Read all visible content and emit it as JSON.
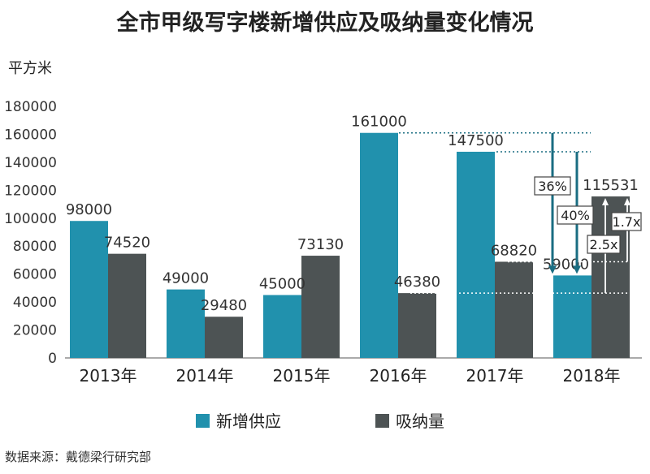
{
  "title": "全市甲级写字楼新增供应及吸纳量变化情况",
  "unit": "平方米",
  "source": "数据来源：戴德梁行研究部",
  "colors": {
    "supply": "#2191ad",
    "absorption": "#4d5354",
    "annotation": "#1a6d82"
  },
  "chart_data": {
    "type": "bar",
    "categories": [
      "2013年",
      "2014年",
      "2015年",
      "2016年",
      "2017年",
      "2018年"
    ],
    "series": [
      {
        "name": "新增供应",
        "values": [
          98000,
          49000,
          45000,
          161000,
          147500,
          59000
        ]
      },
      {
        "name": "吸纳量",
        "values": [
          74520,
          29480,
          73130,
          46380,
          68820,
          115531
        ]
      }
    ],
    "ylim": [
      0,
      180000
    ],
    "yticks": [
      0,
      20000,
      40000,
      60000,
      80000,
      100000,
      120000,
      140000,
      160000,
      180000
    ],
    "legend_position": "bottom",
    "annotations": [
      "36%",
      "40%",
      "2.5x",
      "1.7x"
    ]
  }
}
